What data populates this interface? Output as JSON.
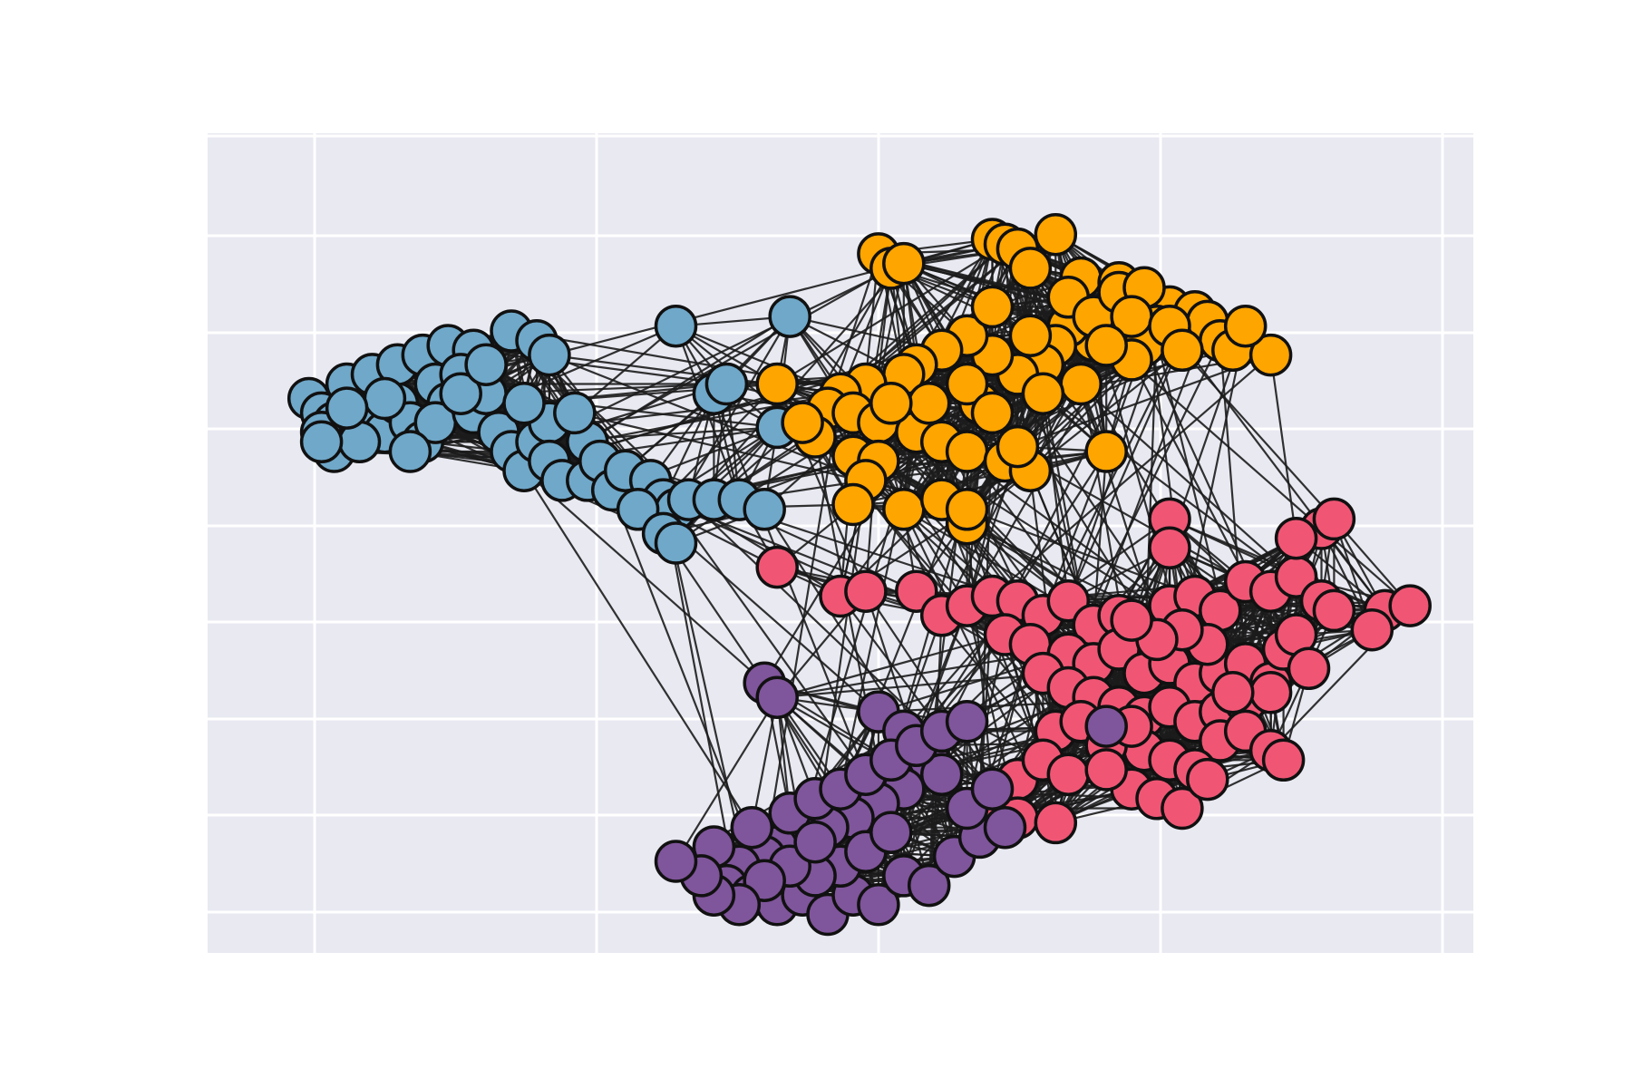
{
  "chart_data": {
    "type": "network",
    "title": "",
    "xlabel": "",
    "ylabel": "",
    "grid": true,
    "background_color": "#e8e9f1",
    "communities": [
      {
        "color": "#6fa8c9",
        "nodes": [
          [
            0.08,
            0.55
          ],
          [
            0.09,
            0.58
          ],
          [
            0.1,
            0.6
          ],
          [
            0.09,
            0.62
          ],
          [
            0.1,
            0.66
          ],
          [
            0.12,
            0.6
          ],
          [
            0.13,
            0.58
          ],
          [
            0.14,
            0.62
          ],
          [
            0.15,
            0.56
          ],
          [
            0.16,
            0.6
          ],
          [
            0.17,
            0.64
          ],
          [
            0.12,
            0.64
          ],
          [
            0.11,
            0.52
          ],
          [
            0.13,
            0.5
          ],
          [
            0.15,
            0.48
          ],
          [
            0.17,
            0.46
          ],
          [
            0.19,
            0.44
          ],
          [
            0.21,
            0.45
          ],
          [
            0.18,
            0.52
          ],
          [
            0.2,
            0.5
          ],
          [
            0.19,
            0.56
          ],
          [
            0.18,
            0.6
          ],
          [
            0.21,
            0.58
          ],
          [
            0.22,
            0.54
          ],
          [
            0.23,
            0.62
          ],
          [
            0.24,
            0.66
          ],
          [
            0.25,
            0.7
          ],
          [
            0.26,
            0.64
          ],
          [
            0.27,
            0.6
          ],
          [
            0.27,
            0.68
          ],
          [
            0.28,
            0.72
          ],
          [
            0.3,
            0.72
          ],
          [
            0.3,
            0.64
          ],
          [
            0.31,
            0.68
          ],
          [
            0.32,
            0.74
          ],
          [
            0.33,
            0.7
          ],
          [
            0.35,
            0.72
          ],
          [
            0.36,
            0.76
          ],
          [
            0.37,
            0.78
          ],
          [
            0.34,
            0.78
          ],
          [
            0.36,
            0.83
          ],
          [
            0.37,
            0.85
          ],
          [
            0.38,
            0.76
          ],
          [
            0.4,
            0.76
          ],
          [
            0.42,
            0.76
          ],
          [
            0.44,
            0.78
          ],
          [
            0.4,
            0.54
          ],
          [
            0.41,
            0.52
          ],
          [
            0.45,
            0.61
          ],
          [
            0.37,
            0.4
          ],
          [
            0.46,
            0.38
          ],
          [
            0.24,
            0.41
          ],
          [
            0.26,
            0.43
          ],
          [
            0.27,
            0.46
          ],
          [
            0.2,
            0.54
          ],
          [
            0.16,
            0.66
          ],
          [
            0.14,
            0.55
          ],
          [
            0.22,
            0.48
          ],
          [
            0.29,
            0.58
          ],
          [
            0.25,
            0.56
          ],
          [
            0.09,
            0.64
          ],
          [
            0.11,
            0.57
          ]
        ]
      },
      {
        "color": "#ffa500",
        "nodes": [
          [
            0.53,
            0.25
          ],
          [
            0.54,
            0.28
          ],
          [
            0.55,
            0.27
          ],
          [
            0.62,
            0.22
          ],
          [
            0.63,
            0.23
          ],
          [
            0.64,
            0.24
          ],
          [
            0.67,
            0.21
          ],
          [
            0.65,
            0.28
          ],
          [
            0.69,
            0.3
          ],
          [
            0.72,
            0.31
          ],
          [
            0.76,
            0.36
          ],
          [
            0.78,
            0.37
          ],
          [
            0.79,
            0.39
          ],
          [
            0.8,
            0.43
          ],
          [
            0.81,
            0.45
          ],
          [
            0.84,
            0.46
          ],
          [
            0.75,
            0.4
          ],
          [
            0.74,
            0.44
          ],
          [
            0.73,
            0.47
          ],
          [
            0.7,
            0.43
          ],
          [
            0.68,
            0.4
          ],
          [
            0.67,
            0.44
          ],
          [
            0.66,
            0.48
          ],
          [
            0.64,
            0.5
          ],
          [
            0.62,
            0.46
          ],
          [
            0.6,
            0.42
          ],
          [
            0.58,
            0.45
          ],
          [
            0.56,
            0.48
          ],
          [
            0.55,
            0.5
          ],
          [
            0.52,
            0.52
          ],
          [
            0.5,
            0.54
          ],
          [
            0.49,
            0.57
          ],
          [
            0.51,
            0.58
          ],
          [
            0.53,
            0.6
          ],
          [
            0.56,
            0.62
          ],
          [
            0.58,
            0.64
          ],
          [
            0.6,
            0.66
          ],
          [
            0.63,
            0.68
          ],
          [
            0.65,
            0.7
          ],
          [
            0.71,
            0.66
          ],
          [
            0.69,
            0.52
          ],
          [
            0.66,
            0.54
          ],
          [
            0.61,
            0.56
          ],
          [
            0.6,
            0.52
          ],
          [
            0.62,
            0.58
          ],
          [
            0.57,
            0.56
          ],
          [
            0.54,
            0.56
          ],
          [
            0.48,
            0.63
          ],
          [
            0.51,
            0.67
          ],
          [
            0.53,
            0.68
          ],
          [
            0.52,
            0.72
          ],
          [
            0.51,
            0.77
          ],
          [
            0.55,
            0.78
          ],
          [
            0.58,
            0.76
          ],
          [
            0.6,
            0.81
          ],
          [
            0.64,
            0.65
          ],
          [
            0.6,
            0.78
          ],
          [
            0.68,
            0.34
          ],
          [
            0.7,
            0.38
          ],
          [
            0.72,
            0.33
          ],
          [
            0.74,
            0.32
          ],
          [
            0.73,
            0.38
          ],
          [
            0.71,
            0.44
          ],
          [
            0.76,
            0.4
          ],
          [
            0.82,
            0.4
          ],
          [
            0.77,
            0.45
          ],
          [
            0.45,
            0.52
          ],
          [
            0.47,
            0.6
          ],
          [
            0.62,
            0.36
          ],
          [
            0.65,
            0.42
          ]
        ]
      },
      {
        "color": "#f05674",
        "nodes": [
          [
            0.45,
            0.9
          ],
          [
            0.5,
            0.96
          ],
          [
            0.52,
            0.95
          ],
          [
            0.56,
            0.95
          ],
          [
            0.58,
            1.0
          ],
          [
            0.6,
            0.98
          ],
          [
            0.62,
            0.96
          ],
          [
            0.64,
            0.97
          ],
          [
            0.66,
            1.0
          ],
          [
            0.68,
            0.97
          ],
          [
            0.7,
            1.02
          ],
          [
            0.72,
            1.0
          ],
          [
            0.74,
            1.03
          ],
          [
            0.76,
            0.98
          ],
          [
            0.78,
            0.96
          ],
          [
            0.8,
            0.99
          ],
          [
            0.82,
            0.93
          ],
          [
            0.84,
            0.95
          ],
          [
            0.86,
            0.92
          ],
          [
            0.88,
            0.97
          ],
          [
            0.89,
            0.99
          ],
          [
            0.88,
            0.82
          ],
          [
            0.86,
            0.84
          ],
          [
            0.89,
            0.8
          ],
          [
            0.76,
            0.8
          ],
          [
            0.76,
            0.86
          ],
          [
            0.63,
            1.04
          ],
          [
            0.65,
            1.06
          ],
          [
            0.68,
            1.08
          ],
          [
            0.7,
            1.1
          ],
          [
            0.72,
            1.07
          ],
          [
            0.74,
            1.12
          ],
          [
            0.76,
            1.1
          ],
          [
            0.78,
            1.14
          ],
          [
            0.8,
            1.12
          ],
          [
            0.82,
            1.1
          ],
          [
            0.84,
            1.14
          ],
          [
            0.85,
            1.07
          ],
          [
            0.86,
            1.04
          ],
          [
            0.87,
            1.11
          ],
          [
            0.66,
            1.12
          ],
          [
            0.68,
            1.15
          ],
          [
            0.7,
            1.17
          ],
          [
            0.72,
            1.19
          ],
          [
            0.74,
            1.21
          ],
          [
            0.76,
            1.19
          ],
          [
            0.78,
            1.22
          ],
          [
            0.8,
            1.2
          ],
          [
            0.82,
            1.18
          ],
          [
            0.84,
            1.16
          ],
          [
            0.8,
            1.26
          ],
          [
            0.82,
            1.24
          ],
          [
            0.84,
            1.28
          ],
          [
            0.74,
            1.28
          ],
          [
            0.76,
            1.3
          ],
          [
            0.78,
            1.32
          ],
          [
            0.73,
            1.36
          ],
          [
            0.75,
            1.38
          ],
          [
            0.77,
            1.4
          ],
          [
            0.79,
            1.34
          ],
          [
            0.85,
            1.3
          ],
          [
            0.67,
            1.24
          ],
          [
            0.69,
            1.22
          ],
          [
            0.71,
            1.27
          ],
          [
            0.73,
            1.23
          ],
          [
            0.64,
            1.34
          ],
          [
            0.66,
            1.3
          ],
          [
            0.68,
            1.33
          ],
          [
            0.71,
            1.32
          ],
          [
            0.61,
            1.4
          ],
          [
            0.64,
            1.42
          ],
          [
            0.67,
            1.43
          ],
          [
            0.93,
            0.99
          ],
          [
            0.95,
            0.98
          ],
          [
            0.92,
            1.03
          ],
          [
            0.81,
            1.16
          ],
          [
            0.79,
            1.06
          ],
          [
            0.77,
            1.03
          ],
          [
            0.75,
            1.05
          ],
          [
            0.73,
            1.01
          ]
        ]
      },
      {
        "color": "#7f559b",
        "nodes": [
          [
            0.44,
            1.14
          ],
          [
            0.45,
            1.17
          ],
          [
            0.53,
            1.2
          ],
          [
            0.55,
            1.24
          ],
          [
            0.57,
            1.3
          ],
          [
            0.58,
            1.33
          ],
          [
            0.55,
            1.36
          ],
          [
            0.53,
            1.39
          ],
          [
            0.51,
            1.42
          ],
          [
            0.49,
            1.44
          ],
          [
            0.47,
            1.46
          ],
          [
            0.45,
            1.48
          ],
          [
            0.44,
            1.5
          ],
          [
            0.42,
            1.52
          ],
          [
            0.4,
            1.48
          ],
          [
            0.43,
            1.44
          ],
          [
            0.46,
            1.41
          ],
          [
            0.48,
            1.38
          ],
          [
            0.5,
            1.36
          ],
          [
            0.52,
            1.33
          ],
          [
            0.54,
            1.3
          ],
          [
            0.56,
            1.27
          ],
          [
            0.58,
            1.24
          ],
          [
            0.6,
            1.22
          ],
          [
            0.41,
            1.56
          ],
          [
            0.43,
            1.58
          ],
          [
            0.45,
            1.6
          ],
          [
            0.47,
            1.58
          ],
          [
            0.49,
            1.62
          ],
          [
            0.51,
            1.58
          ],
          [
            0.53,
            1.6
          ],
          [
            0.55,
            1.54
          ],
          [
            0.57,
            1.56
          ],
          [
            0.59,
            1.5
          ],
          [
            0.61,
            1.46
          ],
          [
            0.63,
            1.44
          ],
          [
            0.5,
            1.52
          ],
          [
            0.48,
            1.54
          ],
          [
            0.46,
            1.52
          ],
          [
            0.44,
            1.55
          ],
          [
            0.42,
            1.6
          ],
          [
            0.4,
            1.58
          ],
          [
            0.39,
            1.54
          ],
          [
            0.37,
            1.51
          ],
          [
            0.48,
            1.47
          ],
          [
            0.52,
            1.49
          ],
          [
            0.54,
            1.45
          ],
          [
            0.71,
            1.23
          ],
          [
            0.6,
            1.4
          ],
          [
            0.62,
            1.36
          ]
        ]
      }
    ],
    "xlim": [
      0.0,
      1.0
    ],
    "ylim": [
      0.0,
      1.7
    ]
  }
}
